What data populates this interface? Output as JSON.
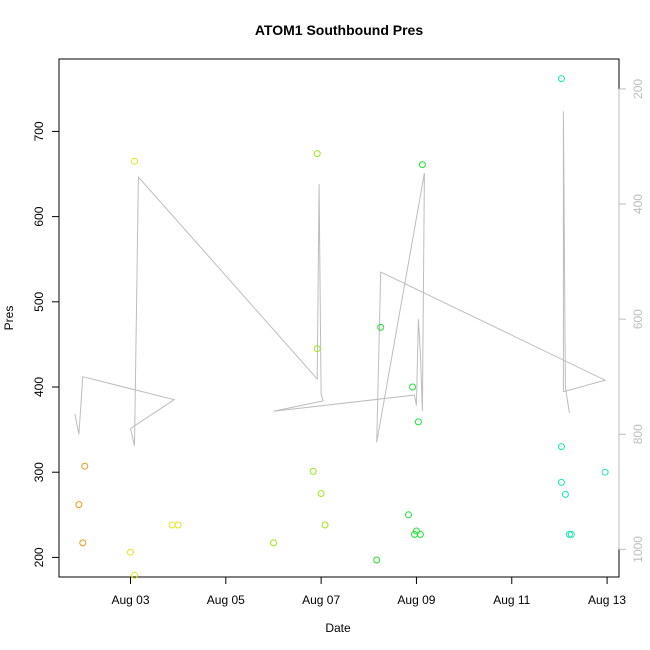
{
  "chart_data": {
    "type": "scatter",
    "title": "ATOM1 Southbound Pres",
    "xlabel": "Date",
    "ylabel": "Pres",
    "xlim": [
      "2024-08-01T12:00",
      "2024-08-13T06:00"
    ],
    "ylim": [
      177,
      785
    ],
    "x_tick_labels": [
      "Aug 03",
      "Aug 05",
      "Aug 07",
      "Aug 09",
      "Aug 11",
      "Aug 13"
    ],
    "x_tick_dates": [
      "2024-08-03",
      "2024-08-05",
      "2024-08-07",
      "2024-08-09",
      "2024-08-11",
      "2024-08-13"
    ],
    "y_ticks": [
      200,
      300,
      400,
      500,
      600,
      700
    ],
    "right_axis": {
      "reversed": true,
      "ylim": [
        1048,
        148
      ],
      "ticks": [
        200,
        400,
        600,
        800,
        1000
      ],
      "color": "#bdbdbd"
    },
    "grid": false,
    "legend": "none",
    "series": [
      {
        "type": "scatter",
        "marker": "open-circle",
        "points": [
          {
            "x": "2024-08-01T22:00",
            "y": 262,
            "color": "#e69a1a"
          },
          {
            "x": "2024-08-02T00:00",
            "y": 217,
            "color": "#e69a1a"
          },
          {
            "x": "2024-08-02T01:00",
            "y": 307,
            "color": "#e69a1a"
          },
          {
            "x": "2024-08-03T00:00",
            "y": 206,
            "color": "#e6e31a"
          },
          {
            "x": "2024-08-03T02:00",
            "y": 665,
            "color": "#e6e31a"
          },
          {
            "x": "2024-08-03T02:00",
            "y": 179,
            "color": "#e6e31a"
          },
          {
            "x": "2024-08-03T21:00",
            "y": 238,
            "color": "#e6e31a"
          },
          {
            "x": "2024-08-04T00:00",
            "y": 238,
            "color": "#e6e31a"
          },
          {
            "x": "2024-08-06T00:00",
            "y": 217,
            "color": "#9ee61a"
          },
          {
            "x": "2024-08-06T20:00",
            "y": 301,
            "color": "#9ee61a"
          },
          {
            "x": "2024-08-06T22:00",
            "y": 674,
            "color": "#9ee61a"
          },
          {
            "x": "2024-08-06T22:00",
            "y": 445,
            "color": "#9ee61a"
          },
          {
            "x": "2024-08-07T00:00",
            "y": 275,
            "color": "#9ee61a"
          },
          {
            "x": "2024-08-07T02:00",
            "y": 238,
            "color": "#9ee61a"
          },
          {
            "x": "2024-08-08T04:00",
            "y": 197,
            "color": "#1ae630"
          },
          {
            "x": "2024-08-08T06:00",
            "y": 470,
            "color": "#1ae630"
          },
          {
            "x": "2024-08-08T20:00",
            "y": 250,
            "color": "#1ae630"
          },
          {
            "x": "2024-08-08T22:00",
            "y": 400,
            "color": "#1ae630"
          },
          {
            "x": "2024-08-08T23:00",
            "y": 227,
            "color": "#1ae630"
          },
          {
            "x": "2024-08-09T00:00",
            "y": 231,
            "color": "#1ae630"
          },
          {
            "x": "2024-08-09T01:00",
            "y": 359,
            "color": "#1ae630"
          },
          {
            "x": "2024-08-09T02:00",
            "y": 227,
            "color": "#1ae630"
          },
          {
            "x": "2024-08-09T03:00",
            "y": 661,
            "color": "#1ae630"
          },
          {
            "x": "2024-08-12T01:00",
            "y": 762,
            "color": "#1ae6b4"
          },
          {
            "x": "2024-08-12T01:00",
            "y": 330,
            "color": "#1ae6b4"
          },
          {
            "x": "2024-08-12T01:00",
            "y": 288,
            "color": "#1ae6b4"
          },
          {
            "x": "2024-08-12T03:00",
            "y": 274,
            "color": "#1ae6b4"
          },
          {
            "x": "2024-08-12T05:00",
            "y": 227,
            "color": "#1ae6b4"
          },
          {
            "x": "2024-08-12T06:00",
            "y": 227,
            "color": "#1ae6b4"
          },
          {
            "x": "2024-08-12T23:00",
            "y": 300,
            "color": "#1ae6b4"
          }
        ]
      },
      {
        "type": "line",
        "axis": "right",
        "color": "#bdbdbd",
        "points": [
          {
            "x": "2024-08-01T20:00",
            "y": 765
          },
          {
            "x": "2024-08-01T22:00",
            "y": 800
          },
          {
            "x": "2024-08-02T00:00",
            "y": 700
          },
          {
            "x": "2024-08-03T22:00",
            "y": 740
          },
          {
            "x": "2024-08-03T00:00",
            "y": 790
          },
          {
            "x": "2024-08-03T02:00",
            "y": 820
          },
          {
            "x": "2024-08-03T04:00",
            "y": 353
          },
          {
            "x": "2024-08-06T22:00",
            "y": 704
          },
          {
            "x": "2024-08-06T23:00",
            "y": 365
          },
          {
            "x": "2024-08-07T00:00",
            "y": 730
          },
          {
            "x": "2024-08-07T01:00",
            "y": 742
          },
          {
            "x": "2024-08-06T00:00",
            "y": 760
          },
          {
            "x": "2024-08-08T23:00",
            "y": 732
          },
          {
            "x": "2024-08-09T00:00",
            "y": 750
          },
          {
            "x": "2024-08-09T01:00",
            "y": 600
          },
          {
            "x": "2024-08-09T02:00",
            "y": 660
          },
          {
            "x": "2024-08-09T03:00",
            "y": 760
          },
          {
            "x": "2024-08-09T04:00",
            "y": 346
          },
          {
            "x": "2024-08-08T04:00",
            "y": 814
          },
          {
            "x": "2024-08-08T06:00",
            "y": 518
          },
          {
            "x": "2024-08-12T23:00",
            "y": 706
          },
          {
            "x": "2024-08-12T02:00",
            "y": 726
          },
          {
            "x": "2024-08-12T02:00",
            "y": 239
          },
          {
            "x": "2024-08-12T03:00",
            "y": 718
          },
          {
            "x": "2024-08-12T05:00",
            "y": 763
          }
        ]
      }
    ]
  }
}
